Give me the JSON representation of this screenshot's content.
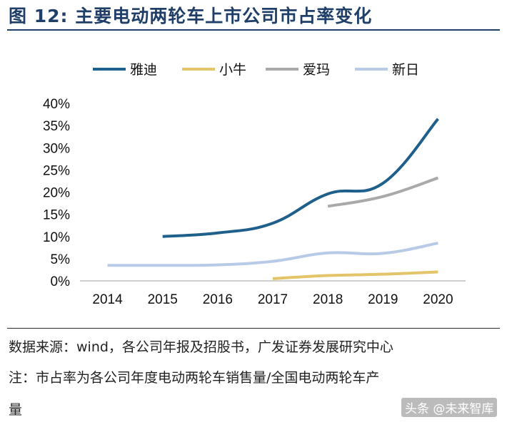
{
  "figure_title": "图 12:  主要电动两轮车上市公司市占率变化",
  "notes": {
    "source": "数据来源：wind，各公司年报及招股书，广发证券发展研究中心",
    "remark_line1": "注：市占率为各公司年度电动两轮车销售量/全国电动两轮车产",
    "remark_line2": "量"
  },
  "watermark": "头条 @未来智库",
  "chart_data": {
    "type": "line",
    "title": "",
    "xlabel": "",
    "ylabel": "",
    "x": [
      "2014",
      "2015",
      "2016",
      "2017",
      "2018",
      "2019",
      "2020"
    ],
    "ylim": [
      0,
      40
    ],
    "yticks": [
      "0%",
      "5%",
      "10%",
      "15%",
      "20%",
      "25%",
      "30%",
      "35%",
      "40%"
    ],
    "grid": false,
    "legend_position": "top",
    "series": [
      {
        "name": "雅迪",
        "color": "#1f5f8b",
        "values": [
          null,
          10.0,
          10.8,
          13.0,
          19.6,
          22.0,
          36.5
        ]
      },
      {
        "name": "小牛",
        "color": "#e3c468",
        "values": [
          null,
          null,
          null,
          0.5,
          1.2,
          1.5,
          2.0
        ]
      },
      {
        "name": "爱玛",
        "color": "#a9a9a9",
        "values": [
          null,
          null,
          null,
          null,
          16.8,
          19.0,
          23.2
        ]
      },
      {
        "name": "新日",
        "color": "#b7cbe6",
        "values": [
          3.5,
          3.5,
          3.6,
          4.4,
          6.3,
          6.2,
          8.5
        ]
      }
    ]
  }
}
